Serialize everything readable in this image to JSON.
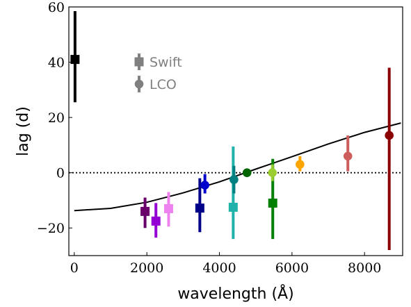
{
  "chart_data": {
    "type": "scatter",
    "xlabel": "wavelength (Å)",
    "ylabel": "lag (d)",
    "xlim": [
      -150,
      9050
    ],
    "ylim": [
      -30,
      60
    ],
    "xticks": [
      0,
      2000,
      4000,
      6000,
      8000
    ],
    "xtick_labels": [
      "0",
      "2000",
      "4000",
      "6000",
      "8000"
    ],
    "yticks": [
      -20,
      0,
      20,
      40,
      60
    ],
    "ytick_labels": [
      "−20",
      "0",
      "20",
      "40",
      "60"
    ],
    "grid": false,
    "reference_line": {
      "y": 0,
      "style": "dotted"
    },
    "fit_curve": {
      "style": "solid",
      "x": [
        0,
        1000,
        2000,
        3000,
        4000,
        5000,
        6000,
        7000,
        8000,
        9000
      ],
      "y": [
        -13.7,
        -12.9,
        -10.7,
        -7.3,
        -3.3,
        1.3,
        5.8,
        10.4,
        14.6,
        18.0
      ]
    },
    "legend": {
      "placement": "upper-left",
      "entries": [
        {
          "label": "Swift",
          "marker": "square",
          "color": "#808080"
        },
        {
          "label": "LCO",
          "marker": "circle",
          "color": "#808080"
        }
      ]
    },
    "series": [
      {
        "name": "Swift",
        "marker": "square",
        "points": [
          {
            "x": 20,
            "y": 41,
            "ylow": 25.5,
            "yhigh": 58.5,
            "color": "#000000"
          },
          {
            "x": 1950,
            "y": -14,
            "ylow": -20,
            "yhigh": -9,
            "color": "#6a006a"
          },
          {
            "x": 2250,
            "y": -17.5,
            "ylow": -23.5,
            "yhigh": -11,
            "color": "#9400d3"
          },
          {
            "x": 2600,
            "y": -13,
            "ylow": -19.5,
            "yhigh": -7,
            "color": "#ee82ee"
          },
          {
            "x": 3460,
            "y": -12.8,
            "ylow": -21.5,
            "yhigh": -2,
            "color": "#00008b"
          },
          {
            "x": 4380,
            "y": -12.5,
            "ylow": -24,
            "yhigh": 9.5,
            "color": "#20b2aa"
          },
          {
            "x": 5470,
            "y": -11,
            "ylow": -24,
            "yhigh": 5,
            "color": "#008000"
          }
        ]
      },
      {
        "name": "LCO",
        "marker": "circle",
        "points": [
          {
            "x": 3600,
            "y": -4.5,
            "ylow": -7.5,
            "yhigh": -0.5,
            "color": "#0000cd"
          },
          {
            "x": 4400,
            "y": -2.5,
            "ylow": -7.5,
            "yhigh": 2.5,
            "color": "#008080"
          },
          {
            "x": 4760,
            "y": 0,
            "ylow": -0.8,
            "yhigh": 0.8,
            "color": "#006400"
          },
          {
            "x": 5460,
            "y": 0,
            "ylow": -3,
            "yhigh": 3,
            "color": "#9acd32"
          },
          {
            "x": 6220,
            "y": 3,
            "ylow": 0.5,
            "yhigh": 6,
            "color": "#ffa500"
          },
          {
            "x": 7540,
            "y": 6,
            "ylow": 0.5,
            "yhigh": 13.5,
            "color": "#cd5c5c"
          },
          {
            "x": 8680,
            "y": 13.5,
            "ylow": -28,
            "yhigh": 38,
            "color": "#8b0000"
          }
        ]
      }
    ]
  }
}
